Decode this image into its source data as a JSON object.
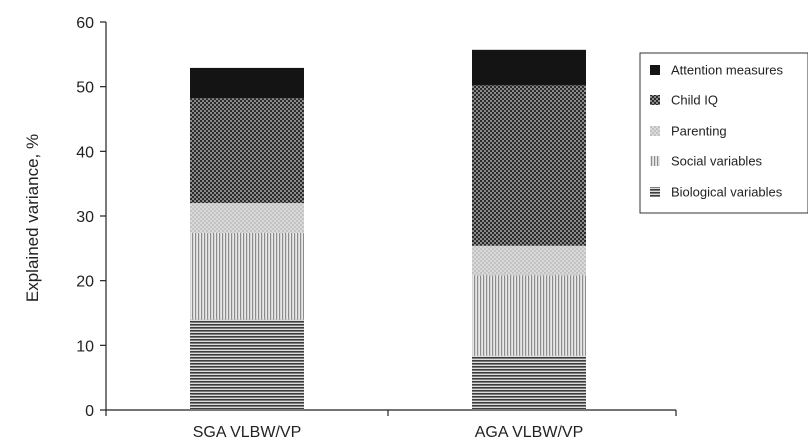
{
  "chart_data": {
    "type": "bar",
    "stacked": true,
    "categories": [
      "SGA VLBW/VP",
      "AGA VLBW/VP"
    ],
    "series": [
      {
        "name": "Biological variables",
        "values": [
          14.0,
          8.4
        ],
        "pattern": "horizontal-lines",
        "color": "#555555"
      },
      {
        "name": "Social variables",
        "values": [
          13.4,
          12.4
        ],
        "pattern": "vertical-lines",
        "color": "#9a9a9a"
      },
      {
        "name": "Parenting",
        "values": [
          4.6,
          4.6
        ],
        "pattern": "light-dots",
        "color": "#c8c8c8"
      },
      {
        "name": "Child IQ",
        "values": [
          16.2,
          24.8
        ],
        "pattern": "checker",
        "color": "#4a4a4a"
      },
      {
        "name": "Attention measures",
        "values": [
          4.7,
          5.5
        ],
        "pattern": "solid",
        "color": "#111111"
      }
    ],
    "legend_order": [
      "Attention measures",
      "Child IQ",
      "Parenting",
      "Social variables",
      "Biological variables"
    ],
    "ylabel": "Explained variance, %",
    "xlabel": "",
    "ylim": [
      0,
      60
    ],
    "yticks": [
      0,
      10,
      20,
      30,
      40,
      50,
      60
    ],
    "grid": false,
    "legend_position": "right"
  }
}
